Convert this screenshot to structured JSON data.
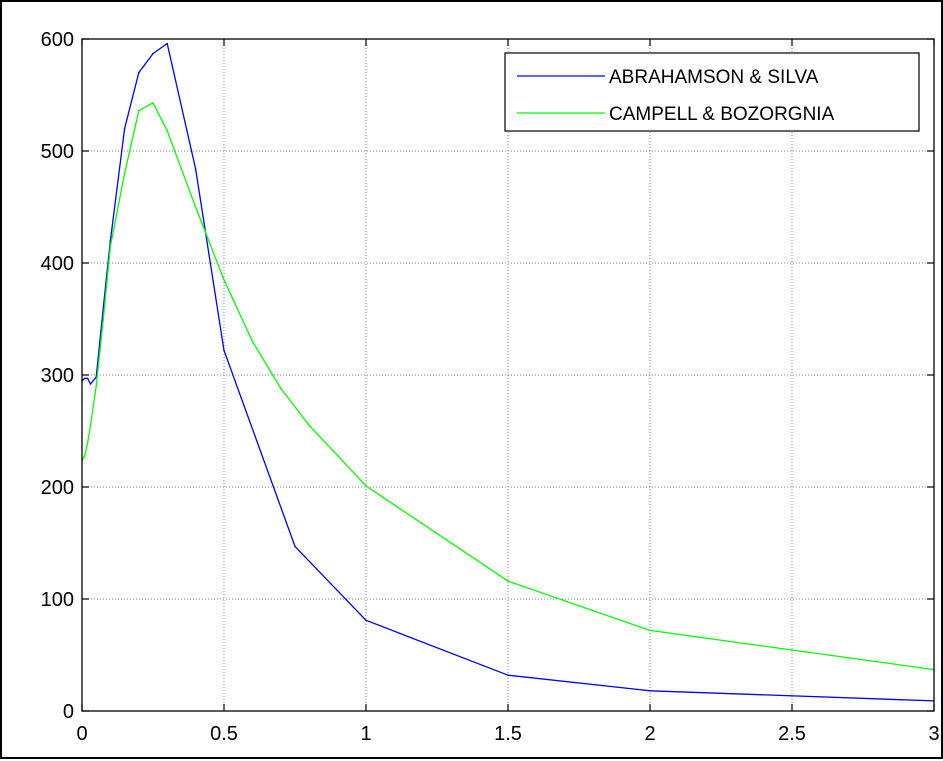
{
  "chart_data": {
    "type": "line",
    "title": "",
    "xlabel": "",
    "ylabel": "",
    "xlim": [
      0,
      3
    ],
    "ylim": [
      0,
      600
    ],
    "grid": true,
    "legend_position": "top-right",
    "x_ticks": [
      0,
      0.5,
      1,
      1.5,
      2,
      2.5,
      3
    ],
    "x_tick_labels": [
      "0",
      "0.5",
      "1",
      "1.5",
      "2",
      "2.5",
      "3"
    ],
    "y_ticks": [
      0,
      100,
      200,
      300,
      400,
      500,
      600
    ],
    "y_tick_labels": [
      "0",
      "100",
      "200",
      "300",
      "400",
      "500",
      "600"
    ],
    "series": [
      {
        "name": "ABRAHAMSON & SILVA",
        "color": "#0000ff",
        "x": [
          0,
          0.01,
          0.02,
          0.03,
          0.05,
          0.075,
          0.1,
          0.15,
          0.2,
          0.25,
          0.3,
          0.4,
          0.5,
          0.75,
          1,
          1.5,
          2,
          3
        ],
        "y": [
          295,
          297,
          297,
          292,
          298,
          360,
          420,
          520,
          570,
          587,
          596,
          484,
          322,
          147,
          81,
          32,
          18,
          9
        ]
      },
      {
        "name": "CAMPELL & BOZORGNIA",
        "color": "#00ff00",
        "x": [
          0,
          0.01,
          0.02,
          0.03,
          0.05,
          0.075,
          0.1,
          0.15,
          0.2,
          0.25,
          0.3,
          0.4,
          0.5,
          0.6,
          0.7,
          0.8,
          0.9,
          1,
          1.5,
          2,
          3
        ],
        "y": [
          224,
          228,
          240,
          255,
          290,
          350,
          415,
          480,
          536,
          543,
          518,
          450,
          385,
          330,
          288,
          255,
          228,
          201,
          116,
          72,
          37
        ]
      }
    ]
  },
  "colors": {
    "background": "#ffffff",
    "axis": "#000000",
    "grid": "#808080"
  }
}
